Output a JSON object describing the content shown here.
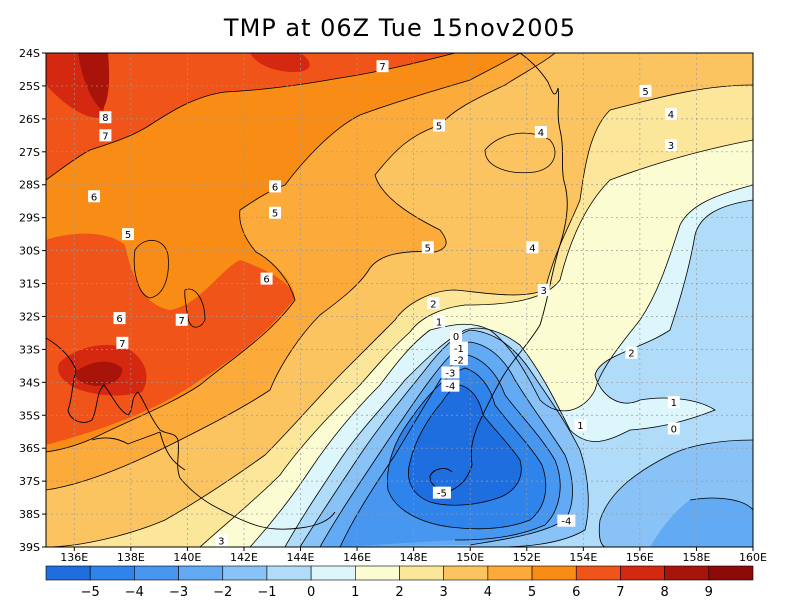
{
  "title": "TMP at 06Z Tue 15nov2005",
  "chart_data": {
    "type": "heatmap",
    "title": "TMP at 06Z Tue 15nov2005",
    "xlabel": "",
    "ylabel": "",
    "x_range": [
      135,
      160
    ],
    "y_range": [
      -39,
      -24
    ],
    "x_ticks": [
      "136E",
      "138E",
      "140E",
      "142E",
      "144E",
      "146E",
      "148E",
      "150E",
      "152E",
      "154E",
      "156E",
      "158E",
      "160E"
    ],
    "y_ticks": [
      "24S",
      "25S",
      "26S",
      "27S",
      "28S",
      "29S",
      "30S",
      "31S",
      "32S",
      "33S",
      "34S",
      "35S",
      "36S",
      "37S",
      "38S",
      "39S"
    ],
    "grid": true,
    "colorbar": {
      "placement": "bottom",
      "labels": [
        "-5",
        "-4",
        "-3",
        "-2",
        "-1",
        "0",
        "1",
        "2",
        "3",
        "4",
        "5",
        "6",
        "7",
        "8",
        "9"
      ],
      "colors": [
        "#1e6ee0",
        "#2f84ec",
        "#4796f0",
        "#62aaf4",
        "#88c2f6",
        "#b0dcfa",
        "#dcf6fc",
        "#fcfcd2",
        "#fce69a",
        "#fcc460",
        "#fcaa3a",
        "#f88c14",
        "#f05418",
        "#d42810",
        "#a8140a",
        "#8c0a08"
      ]
    },
    "contour_labels": [
      {
        "value": "8",
        "lon": 137.1,
        "lat": -25.95
      },
      {
        "value": "7",
        "lon": 137.1,
        "lat": -26.5
      },
      {
        "value": "7",
        "lon": 146.9,
        "lat": -24.4
      },
      {
        "value": "7",
        "lon": 137.7,
        "lat": -32.8
      },
      {
        "value": "7",
        "lon": 139.8,
        "lat": -32.1
      },
      {
        "value": "6",
        "lon": 136.7,
        "lat": -28.35
      },
      {
        "value": "6",
        "lon": 143.1,
        "lat": -28.05
      },
      {
        "value": "6",
        "lon": 142.8,
        "lat": -30.85
      },
      {
        "value": "6",
        "lon": 137.6,
        "lat": -32.05
      },
      {
        "value": "5",
        "lon": 137.9,
        "lat": -29.5
      },
      {
        "value": "5",
        "lon": 143.1,
        "lat": -28.85
      },
      {
        "value": "5",
        "lon": 148.5,
        "lat": -29.9
      },
      {
        "value": "5",
        "lon": 148.9,
        "lat": -26.2
      },
      {
        "value": "5",
        "lon": 156.2,
        "lat": -25.15
      },
      {
        "value": "4",
        "lon": 152.5,
        "lat": -26.4
      },
      {
        "value": "4",
        "lon": 152.2,
        "lat": -29.9
      },
      {
        "value": "4",
        "lon": 157.1,
        "lat": -25.85
      },
      {
        "value": "3",
        "lon": 157.1,
        "lat": -26.8
      },
      {
        "value": "3",
        "lon": 152.6,
        "lat": -31.2
      },
      {
        "value": "3",
        "lon": 141.2,
        "lat": -38.8
      },
      {
        "value": "2",
        "lon": 148.7,
        "lat": -31.6
      },
      {
        "value": "2",
        "lon": 155.7,
        "lat": -33.1
      },
      {
        "value": "1",
        "lon": 148.9,
        "lat": -32.15
      },
      {
        "value": "1",
        "lon": 157.2,
        "lat": -34.6
      },
      {
        "value": "1",
        "lon": 153.9,
        "lat": -35.3
      },
      {
        "value": "0",
        "lon": 149.5,
        "lat": -32.6
      },
      {
        "value": "0",
        "lon": 157.2,
        "lat": -35.4
      },
      {
        "value": "-1",
        "lon": 149.6,
        "lat": -32.95
      },
      {
        "value": "-2",
        "lon": 149.6,
        "lat": -33.3
      },
      {
        "value": "-3",
        "lon": 149.3,
        "lat": -33.7
      },
      {
        "value": "-4",
        "lon": 149.3,
        "lat": -34.1
      },
      {
        "value": "-5",
        "lon": 149.0,
        "lat": -37.35
      },
      {
        "value": "-4",
        "lon": 153.4,
        "lat": -38.2
      }
    ]
  }
}
